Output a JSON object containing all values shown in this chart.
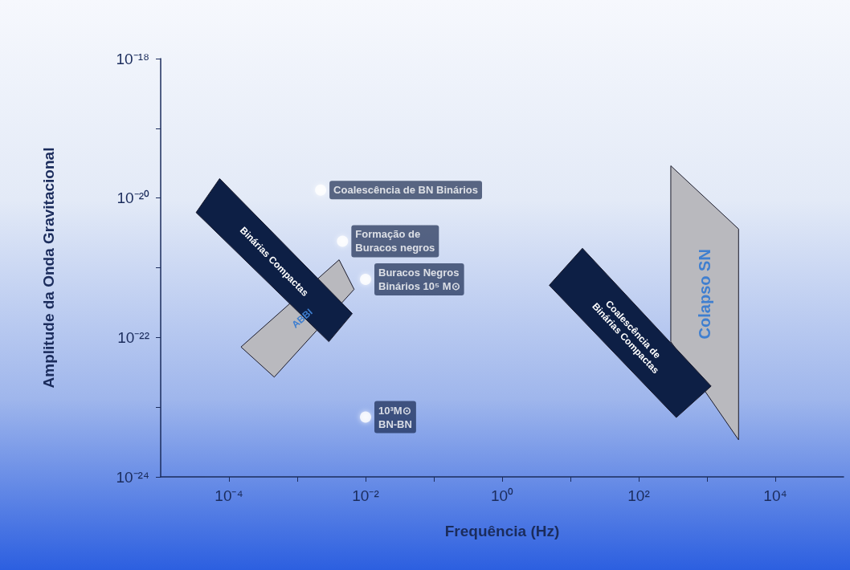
{
  "chart_data": {
    "type": "scatter",
    "xlabel": "Frequência (Hz)",
    "ylabel": "Amplitude da Onda Gravitacional",
    "log": "xy",
    "grid": false,
    "legend": false,
    "marker": "circle",
    "xlim": [
      1e-05,
      100000.0
    ],
    "xticks": [
      {
        "value": 0.0001,
        "label": "10⁻⁴"
      },
      {
        "value": 0.001,
        "label": null
      },
      {
        "value": 0.01,
        "label": "10⁻²"
      },
      {
        "value": 0.1,
        "label": null
      },
      {
        "value": 1,
        "label": "10⁰"
      },
      {
        "value": 10,
        "label": null
      },
      {
        "value": 100,
        "label": "10²"
      },
      {
        "value": 1000,
        "label": null
      },
      {
        "value": 10000,
        "label": "10⁴"
      }
    ],
    "ylim": [
      1e-24,
      1e-18
    ],
    "yticks": [
      {
        "value": 1e-24,
        "label": "10⁻²⁴"
      },
      {
        "value": 1e-23,
        "label": null
      },
      {
        "value": 1e-22,
        "label": "10⁻²²"
      },
      {
        "value": 1e-21,
        "label": null
      },
      {
        "value": 1e-20,
        "label": "10⁻²⁰"
      },
      {
        "value": 1e-19,
        "label": null
      },
      {
        "value": 1e-18,
        "label": "10⁻¹⁸"
      }
    ],
    "series": [
      {
        "type": "area",
        "marker": "none",
        "name": "ABBI",
        "color": "#b9b9be",
        "x": [
          0.00015,
          0.0041,
          0.0068,
          0.00046
        ],
        "values": [
          7.3e-23,
          1.3e-21,
          4.9e-22,
          2.7e-23
        ]
      },
      {
        "type": "area",
        "marker": "none",
        "name": "Binárias Compactas",
        "color": "#0d1f45",
        "x": [
          3.3e-05,
          7.3e-05,
          0.0064,
          0.0029
        ],
        "values": [
          6.2e-21,
          1.9e-20,
          2.2e-22,
          8.7e-23
        ]
      },
      {
        "type": "area",
        "marker": "none",
        "name": "Colapso SN",
        "color": "#b9b9be",
        "x": [
          295,
          2900,
          2900,
          295
        ],
        "values": [
          2.9e-20,
          3.6e-21,
          3.4e-24,
          8.7e-23
        ]
      },
      {
        "type": "area",
        "marker": "none",
        "name": "Coalescência de Binárias Compactas",
        "color": "#0d1f45",
        "x": [
          4.9,
          15,
          1150,
          355
        ],
        "values": [
          5.6e-22,
          1.9e-21,
          2e-23,
          7.1e-24
        ]
      },
      {
        "type": "scatter",
        "name": "Coalescência de BN Binários",
        "color": "#ffffff",
        "x": [
          0.0022
        ],
        "values": [
          1.3e-20
        ]
      },
      {
        "type": "scatter",
        "name": "Formação de\nBuracos negros",
        "color": "#ffffff",
        "x": [
          0.0046
        ],
        "values": [
          2.4e-21
        ]
      },
      {
        "type": "scatter",
        "name": "Buracos Negros\nBinários 10⁵ M⊙",
        "color": "#ffffff",
        "x": [
          0.01
        ],
        "values": [
          6.8e-22
        ]
      },
      {
        "type": "scatter",
        "name": "10³M⊙\nBN-BN",
        "color": "#ffffff",
        "x": [
          0.01
        ],
        "values": [
          7.2e-24
        ]
      }
    ]
  }
}
